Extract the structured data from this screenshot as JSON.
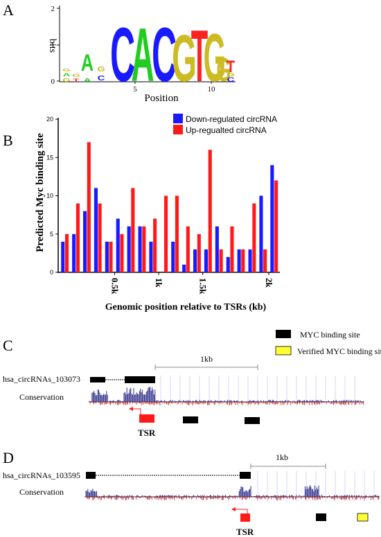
{
  "panels": {
    "a": {
      "letter": "A",
      "ylabel": "bits",
      "xlabel": "Position",
      "y_ticks": [
        "0",
        "1",
        "2"
      ],
      "x_ticks": [
        "5",
        "10"
      ],
      "motif": "CACGTG",
      "colors": {
        "A": "#22cc22",
        "C": "#1a1aff",
        "G": "#ccbb22",
        "T": "#ff2222"
      }
    },
    "b": {
      "letter": "B"
    },
    "c": {
      "letter": "C",
      "legend": [
        {
          "label": "MYC binding site",
          "color": "#000000"
        },
        {
          "label": "Verified MYC binding site",
          "color": "#ffff33"
        }
      ],
      "scale_label": "1kb",
      "track_name": "hsa_circRNAs_103073",
      "conservation_label": "Conservation",
      "tsr_label": "TSR"
    },
    "d": {
      "letter": "D",
      "scale_label": "1kb",
      "track_name": "hsa_circRNAs_103595",
      "conservation_label": "Conservation",
      "tsr_label": "TSR"
    }
  },
  "chart_data": {
    "type": "bar",
    "ylabel": "Predicted Myc binding site",
    "xlabel": "Genomic position relative to TSRs (kb)",
    "ylim": [
      0,
      20
    ],
    "y_ticks": [
      0,
      5,
      10,
      15,
      20
    ],
    "x_tick_labels": [
      {
        "label": "0.5k",
        "after_group": 4
      },
      {
        "label": "1k",
        "after_group": 8
      },
      {
        "label": "1.5k",
        "after_group": 12
      },
      {
        "label": "2k",
        "after_group": 18
      }
    ],
    "legend_placement": "top-right",
    "series": [
      {
        "name": "Down-regulated circRNA",
        "color": "#1a1aff",
        "values": [
          4,
          5,
          8,
          11,
          4,
          7,
          6,
          6,
          4,
          0,
          4,
          1,
          3,
          3,
          6,
          2,
          3,
          3,
          10,
          14
        ]
      },
      {
        "name": "Up-regualted circRNA",
        "color": "#ff1a1a",
        "values": [
          5,
          9,
          17,
          9,
          4,
          5,
          11,
          6,
          7,
          10,
          10,
          6,
          5,
          16,
          3,
          6,
          3,
          9,
          3,
          12
        ]
      }
    ]
  }
}
